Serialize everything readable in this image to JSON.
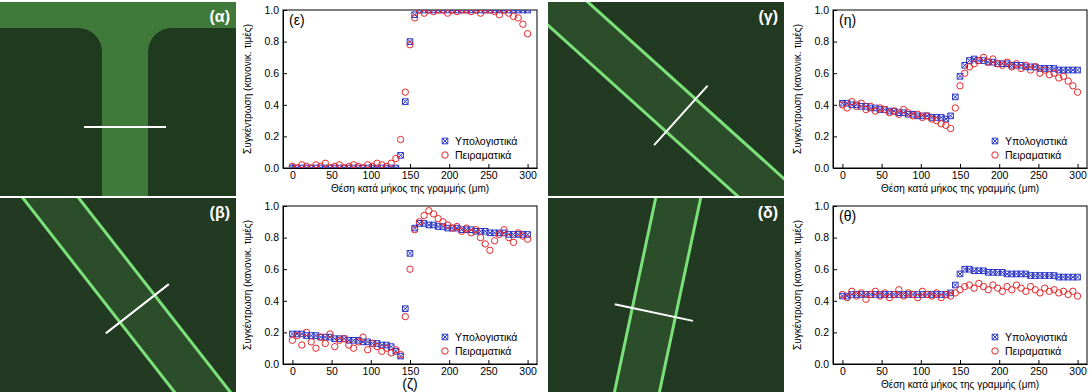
{
  "images": [
    {
      "label": "(α)"
    },
    {
      "label": "(β)"
    },
    {
      "label": "(γ)"
    },
    {
      "label": "(δ)"
    }
  ],
  "chart_data": [
    {
      "type": "scatter",
      "title": "(ε)",
      "x_label": "Θέση κατά μήκος της γραμμής (μm)",
      "y_label": "Συγκέντρωση (κανονικ. τιμές)",
      "x": [
        0,
        6,
        12,
        18,
        24,
        30,
        36,
        42,
        48,
        54,
        60,
        66,
        72,
        78,
        84,
        90,
        96,
        102,
        108,
        114,
        120,
        126,
        132,
        138,
        144,
        150,
        156,
        162,
        168,
        174,
        180,
        186,
        192,
        198,
        204,
        210,
        216,
        222,
        228,
        234,
        240,
        246,
        252,
        258,
        264,
        270,
        276,
        282,
        288,
        294,
        300
      ],
      "series": [
        {
          "name": "Υπολογιστικά",
          "color": "#2a36c9",
          "marker": "square-x",
          "values": [
            0,
            0,
            0,
            0,
            0,
            0,
            0,
            0,
            0,
            0,
            0,
            0,
            0,
            0,
            0,
            0,
            0,
            0,
            0,
            0,
            0,
            0,
            0,
            0.08,
            0.42,
            0.8,
            0.97,
            1.0,
            1.0,
            1.0,
            1.0,
            1.0,
            1.0,
            1.0,
            1.0,
            1.0,
            1.0,
            1.0,
            1.0,
            1.0,
            1.0,
            1.0,
            1.0,
            1.0,
            1.0,
            1.0,
            1.0,
            1.0,
            1.0,
            1.0,
            1.0
          ]
        },
        {
          "name": "Πειραματικά",
          "color": "#e8262a",
          "marker": "circle",
          "values": [
            0.01,
            0.0,
            0.02,
            0.01,
            0.0,
            0.02,
            0.01,
            0.03,
            0.0,
            0.01,
            0.02,
            0.0,
            0.01,
            0.02,
            0.01,
            0.0,
            0.02,
            0.01,
            0.03,
            0.02,
            0.01,
            0.03,
            0.06,
            0.18,
            0.48,
            0.78,
            0.95,
            1.0,
            0.98,
            1.0,
            0.99,
            1.0,
            1.0,
            0.98,
            1.0,
            0.99,
            1.0,
            1.0,
            0.99,
            1.0,
            0.98,
            1.0,
            1.0,
            0.99,
            0.97,
            1.0,
            0.98,
            0.96,
            0.95,
            0.91,
            0.85
          ]
        }
      ],
      "xlim": [
        -12,
        312
      ],
      "ylim": [
        0,
        1
      ],
      "xticks": [
        0,
        50,
        100,
        150,
        200,
        250,
        300
      ],
      "yticks": [
        {
          "value": 0,
          "label": "0.0"
        },
        {
          "value": 0.2,
          "label": "0.2"
        },
        {
          "value": 0.4,
          "label": "0.4"
        },
        {
          "value": 0.6,
          "label": "0.6"
        },
        {
          "value": 0.8,
          "label": "0.8"
        },
        {
          "value": 1,
          "label": "1.0"
        }
      ],
      "legend": "lower right"
    },
    {
      "type": "scatter",
      "title": "(ζ)",
      "y_label": "Συγκέντρωση (κανονικ. τιμές)",
      "x": [
        0,
        6,
        12,
        18,
        24,
        30,
        36,
        42,
        48,
        54,
        60,
        66,
        72,
        78,
        84,
        90,
        96,
        102,
        108,
        114,
        120,
        126,
        132,
        138,
        144,
        150,
        156,
        162,
        168,
        174,
        180,
        186,
        192,
        198,
        204,
        210,
        216,
        222,
        228,
        234,
        240,
        246,
        252,
        258,
        264,
        270,
        276,
        282,
        288,
        294,
        300
      ],
      "series": [
        {
          "name": "Υπολογιστικά",
          "color": "#2a36c9",
          "marker": "square-x",
          "values": [
            0.19,
            0.19,
            0.19,
            0.18,
            0.18,
            0.18,
            0.17,
            0.17,
            0.17,
            0.16,
            0.16,
            0.16,
            0.15,
            0.15,
            0.15,
            0.14,
            0.14,
            0.13,
            0.13,
            0.12,
            0.12,
            0.11,
            0.08,
            0.05,
            0.35,
            0.7,
            0.86,
            0.89,
            0.89,
            0.88,
            0.88,
            0.87,
            0.87,
            0.86,
            0.86,
            0.86,
            0.85,
            0.85,
            0.85,
            0.84,
            0.84,
            0.84,
            0.83,
            0.83,
            0.83,
            0.83,
            0.82,
            0.82,
            0.82,
            0.82,
            0.82
          ]
        },
        {
          "name": "Πειραματικά",
          "color": "#e8262a",
          "marker": "circle",
          "values": [
            0.15,
            0.18,
            0.12,
            0.2,
            0.14,
            0.1,
            0.17,
            0.13,
            0.19,
            0.11,
            0.15,
            0.16,
            0.12,
            0.1,
            0.14,
            0.17,
            0.09,
            0.13,
            0.11,
            0.08,
            0.1,
            0.07,
            0.09,
            0.06,
            0.3,
            0.6,
            0.85,
            0.9,
            0.94,
            0.97,
            0.95,
            0.92,
            0.9,
            0.88,
            0.86,
            0.87,
            0.84,
            0.86,
            0.83,
            0.85,
            0.8,
            0.76,
            0.72,
            0.78,
            0.82,
            0.85,
            0.8,
            0.77,
            0.83,
            0.81,
            0.79
          ]
        }
      ],
      "xlim": [
        -12,
        312
      ],
      "ylim": [
        0,
        1
      ],
      "xticks": [
        0,
        50,
        100,
        150,
        200,
        250,
        300
      ],
      "yticks": [
        {
          "value": 0,
          "label": "0.0"
        },
        {
          "value": 0.2,
          "label": "0.2"
        },
        {
          "value": 0.4,
          "label": "0.4"
        },
        {
          "value": 0.6,
          "label": "0.6"
        },
        {
          "value": 0.8,
          "label": "0.8"
        },
        {
          "value": 1,
          "label": "1.0"
        }
      ],
      "legend": "lower right"
    },
    {
      "type": "scatter",
      "title": "(η)",
      "x_label": "Θέση κατά μήκος της γραμμής (μm)",
      "y_label": "Συγκέντρωση (κανονικ. τιμές)",
      "x": [
        0,
        6,
        12,
        18,
        24,
        30,
        36,
        42,
        48,
        54,
        60,
        66,
        72,
        78,
        84,
        90,
        96,
        102,
        108,
        114,
        120,
        126,
        132,
        138,
        144,
        150,
        156,
        162,
        168,
        174,
        180,
        186,
        192,
        198,
        204,
        210,
        216,
        222,
        228,
        234,
        240,
        246,
        252,
        258,
        264,
        270,
        276,
        282,
        288,
        294,
        300
      ],
      "series": [
        {
          "name": "Υπολογιστικά",
          "color": "#2a36c9",
          "marker": "square-x",
          "values": [
            0.41,
            0.41,
            0.4,
            0.4,
            0.39,
            0.39,
            0.38,
            0.38,
            0.37,
            0.37,
            0.36,
            0.36,
            0.35,
            0.35,
            0.34,
            0.34,
            0.33,
            0.33,
            0.33,
            0.32,
            0.32,
            0.32,
            0.31,
            0.33,
            0.45,
            0.58,
            0.65,
            0.68,
            0.69,
            0.68,
            0.68,
            0.67,
            0.67,
            0.66,
            0.66,
            0.66,
            0.65,
            0.65,
            0.65,
            0.64,
            0.64,
            0.64,
            0.63,
            0.63,
            0.63,
            0.63,
            0.62,
            0.62,
            0.62,
            0.62,
            0.62
          ]
        },
        {
          "name": "Πειραματικά",
          "color": "#e8262a",
          "marker": "circle",
          "values": [
            0.4,
            0.38,
            0.42,
            0.39,
            0.41,
            0.37,
            0.39,
            0.36,
            0.38,
            0.37,
            0.35,
            0.36,
            0.34,
            0.37,
            0.35,
            0.33,
            0.34,
            0.32,
            0.33,
            0.31,
            0.3,
            0.28,
            0.27,
            0.25,
            0.38,
            0.52,
            0.6,
            0.64,
            0.66,
            0.68,
            0.7,
            0.67,
            0.69,
            0.66,
            0.65,
            0.67,
            0.64,
            0.66,
            0.63,
            0.65,
            0.62,
            0.64,
            0.6,
            0.62,
            0.59,
            0.6,
            0.57,
            0.58,
            0.55,
            0.52,
            0.48
          ]
        }
      ],
      "xlim": [
        -12,
        312
      ],
      "ylim": [
        0,
        1
      ],
      "xticks": [
        0,
        50,
        100,
        150,
        200,
        250,
        300
      ],
      "yticks": [
        {
          "value": 0,
          "label": "0.0"
        },
        {
          "value": 0.2,
          "label": "0.2"
        },
        {
          "value": 0.4,
          "label": "0.4"
        },
        {
          "value": 0.6,
          "label": "0.6"
        },
        {
          "value": 0.8,
          "label": "0.8"
        },
        {
          "value": 1,
          "label": "1.0"
        }
      ],
      "legend": "lower right"
    },
    {
      "type": "scatter",
      "title": "(θ)",
      "x_label": "Θέση κατά μήκος της γραμμής (μm)",
      "y_label": "Συγκέντρωση (κανονικ. τιμές)",
      "x": [
        0,
        6,
        12,
        18,
        24,
        30,
        36,
        42,
        48,
        54,
        60,
        66,
        72,
        78,
        84,
        90,
        96,
        102,
        108,
        114,
        120,
        126,
        132,
        138,
        144,
        150,
        156,
        162,
        168,
        174,
        180,
        186,
        192,
        198,
        204,
        210,
        216,
        222,
        228,
        234,
        240,
        246,
        252,
        258,
        264,
        270,
        276,
        282,
        288,
        294,
        300
      ],
      "series": [
        {
          "name": "Υπολογιστικά",
          "color": "#2a36c9",
          "marker": "square-x",
          "values": [
            0.43,
            0.43,
            0.44,
            0.44,
            0.44,
            0.44,
            0.44,
            0.44,
            0.44,
            0.44,
            0.44,
            0.44,
            0.44,
            0.44,
            0.44,
            0.44,
            0.44,
            0.44,
            0.44,
            0.44,
            0.44,
            0.44,
            0.44,
            0.45,
            0.5,
            0.57,
            0.6,
            0.6,
            0.59,
            0.59,
            0.59,
            0.58,
            0.58,
            0.58,
            0.58,
            0.57,
            0.57,
            0.57,
            0.57,
            0.57,
            0.56,
            0.56,
            0.56,
            0.56,
            0.56,
            0.56,
            0.55,
            0.55,
            0.55,
            0.55,
            0.55
          ]
        },
        {
          "name": "Πειραματικά",
          "color": "#e8262a",
          "marker": "circle",
          "values": [
            0.44,
            0.42,
            0.46,
            0.43,
            0.45,
            0.41,
            0.44,
            0.46,
            0.43,
            0.45,
            0.42,
            0.44,
            0.47,
            0.43,
            0.45,
            0.44,
            0.42,
            0.46,
            0.44,
            0.43,
            0.45,
            0.42,
            0.44,
            0.43,
            0.45,
            0.47,
            0.49,
            0.5,
            0.48,
            0.51,
            0.49,
            0.47,
            0.5,
            0.48,
            0.46,
            0.49,
            0.47,
            0.5,
            0.48,
            0.46,
            0.49,
            0.47,
            0.45,
            0.48,
            0.46,
            0.47,
            0.45,
            0.46,
            0.44,
            0.46,
            0.43
          ]
        }
      ],
      "xlim": [
        -12,
        312
      ],
      "ylim": [
        0,
        1
      ],
      "xticks": [
        0,
        50,
        100,
        150,
        200,
        250,
        300
      ],
      "yticks": [
        {
          "value": 0,
          "label": "0.0"
        },
        {
          "value": 0.2,
          "label": "0.2"
        },
        {
          "value": 0.4,
          "label": "0.4"
        },
        {
          "value": 0.6,
          "label": "0.6"
        },
        {
          "value": 0.8,
          "label": "0.8"
        },
        {
          "value": 1,
          "label": "1.0"
        }
      ],
      "legend": "lower right"
    }
  ]
}
